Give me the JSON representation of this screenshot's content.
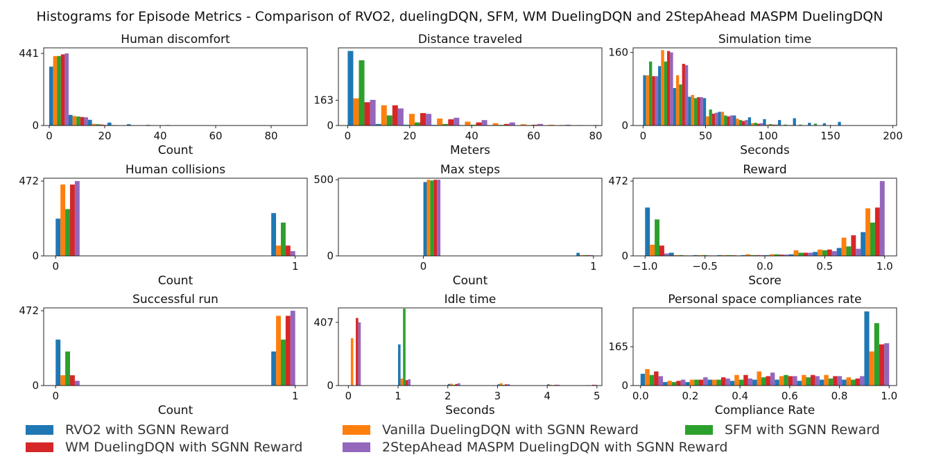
{
  "figure": {
    "title": "Histograms for Episode Metrics - Comparison of RVO2, duelingDQN, SFM, WM DuelingDQN and 2StepAhead MASPM DuelingDQN"
  },
  "colors": {
    "rvo2": "#1f77b4",
    "vanilla": "#ff7f0e",
    "sfm": "#2ca02c",
    "wm": "#d62728",
    "maspm": "#9467bd"
  },
  "legend": {
    "layout": "bottom, three columns",
    "items": [
      {
        "key": "rvo2",
        "label": "RVO2 with SGNN Reward"
      },
      {
        "key": "wm",
        "label": "WM DuelingDQN with SGNN Reward"
      },
      {
        "key": "vanilla",
        "label": "Vanilla DuelingDQN with SGNN Reward"
      },
      {
        "key": "maspm",
        "label": "2StepAhead MASPM DuelingDQN with SGNN Reward"
      },
      {
        "key": "sfm",
        "label": "SFM with SGNN Reward"
      }
    ]
  },
  "chart_data": [
    {
      "type": "bar",
      "title": "Human discomfort",
      "xlabel": "Count",
      "xlim": [
        -2,
        93
      ],
      "ylim": [
        0,
        475
      ],
      "xticks": [
        {
          "v": 0,
          "l": "0"
        },
        {
          "v": 20,
          "l": "20"
        },
        {
          "v": 40,
          "l": "40"
        },
        {
          "v": 60,
          "l": "60"
        },
        {
          "v": 80,
          "l": "80"
        }
      ],
      "yticks": [
        {
          "v": 0,
          "l": "0"
        },
        {
          "v": 441,
          "l": "441"
        }
      ],
      "bin_edges": [
        0,
        7,
        14,
        21,
        28,
        35,
        42,
        49
      ],
      "series": [
        {
          "key": "rvo2",
          "values": [
            360,
            65,
            35,
            18,
            8,
            4,
            3
          ]
        },
        {
          "key": "vanilla",
          "values": [
            425,
            58,
            10,
            3,
            1,
            1,
            0
          ]
        },
        {
          "key": "sfm",
          "values": [
            425,
            55,
            8,
            2,
            1,
            0,
            0
          ]
        },
        {
          "key": "wm",
          "values": [
            435,
            52,
            6,
            2,
            0,
            0,
            0
          ]
        },
        {
          "key": "maspm",
          "values": [
            441,
            50,
            4,
            1,
            0,
            0,
            0
          ]
        }
      ]
    },
    {
      "type": "bar",
      "title": "Distance traveled",
      "xlabel": "Meters",
      "xlim": [
        -3,
        82
      ],
      "ylim": [
        0,
        500
      ],
      "xticks": [
        {
          "v": 0,
          "l": "0"
        },
        {
          "v": 20,
          "l": "20"
        },
        {
          "v": 40,
          "l": "40"
        },
        {
          "v": 60,
          "l": "60"
        },
        {
          "v": 80,
          "l": "80"
        }
      ],
      "yticks": [
        {
          "v": 0,
          "l": "0"
        },
        {
          "v": 163,
          "l": "163"
        }
      ],
      "bin_edges": [
        0,
        9,
        18,
        27,
        36,
        45,
        54,
        63,
        72,
        81
      ],
      "series": [
        {
          "key": "rvo2",
          "values": [
            480,
            10,
            5,
            4,
            3,
            3,
            2,
            2,
            2
          ]
        },
        {
          "key": "vanilla",
          "values": [
            175,
            130,
            75,
            45,
            25,
            15,
            8,
            5,
            3
          ]
        },
        {
          "key": "sfm",
          "values": [
            420,
            65,
            20,
            10,
            5,
            4,
            3,
            2,
            2
          ]
        },
        {
          "key": "wm",
          "values": [
            150,
            130,
            80,
            40,
            20,
            10,
            5,
            3,
            2
          ]
        },
        {
          "key": "maspm",
          "values": [
            165,
            110,
            75,
            50,
            35,
            20,
            10,
            5,
            3
          ]
        }
      ]
    },
    {
      "type": "bar",
      "title": "Simulation time",
      "xlabel": "Seconds",
      "xlim": [
        -8,
        203
      ],
      "ylim": [
        0,
        170
      ],
      "xticks": [
        {
          "v": 0,
          "l": "0"
        },
        {
          "v": 50,
          "l": "50"
        },
        {
          "v": 100,
          "l": "100"
        },
        {
          "v": 150,
          "l": "150"
        },
        {
          "v": 200,
          "l": "200"
        }
      ],
      "yticks": [
        {
          "v": 0,
          "l": "0"
        },
        {
          "v": 160,
          "l": "160"
        }
      ],
      "bin_edges": [
        0,
        12,
        24,
        36,
        48,
        60,
        72,
        84,
        96,
        108,
        120,
        132,
        144,
        156,
        168,
        180,
        192
      ],
      "series": [
        {
          "key": "rvo2",
          "values": [
            110,
            130,
            82,
            63,
            60,
            30,
            22,
            18,
            14,
            12,
            16,
            6,
            5,
            8,
            0,
            0
          ]
        },
        {
          "key": "vanilla",
          "values": [
            110,
            165,
            110,
            67,
            20,
            30,
            15,
            5,
            2,
            1,
            0,
            0,
            0,
            0,
            0,
            0
          ]
        },
        {
          "key": "sfm",
          "values": [
            140,
            140,
            90,
            60,
            35,
            22,
            12,
            6,
            3,
            2,
            2,
            4,
            1,
            0,
            0,
            0
          ]
        },
        {
          "key": "wm",
          "values": [
            108,
            163,
            135,
            62,
            26,
            20,
            10,
            4,
            2,
            1,
            0,
            0,
            0,
            0,
            0,
            0
          ]
        },
        {
          "key": "maspm",
          "values": [
            108,
            160,
            132,
            62,
            28,
            22,
            12,
            5,
            2,
            1,
            0,
            0,
            0,
            0,
            0,
            0
          ]
        }
      ]
    },
    {
      "type": "bar",
      "title": "Human collisions",
      "xlabel": "Count",
      "xlim": [
        -0.05,
        1.05
      ],
      "ylim": [
        0,
        490
      ],
      "xticks": [
        {
          "v": 0,
          "l": "0"
        },
        {
          "v": 1,
          "l": "1"
        }
      ],
      "yticks": [
        {
          "v": 0,
          "l": "0"
        },
        {
          "v": 472,
          "l": "472"
        }
      ],
      "bin_edges": [
        0,
        0.1,
        0.9,
        1.0
      ],
      "series": [
        {
          "key": "rvo2",
          "values": [
            235,
            0,
            270
          ]
        },
        {
          "key": "vanilla",
          "values": [
            450,
            0,
            65
          ]
        },
        {
          "key": "sfm",
          "values": [
            295,
            0,
            210
          ]
        },
        {
          "key": "wm",
          "values": [
            450,
            0,
            65
          ]
        },
        {
          "key": "maspm",
          "values": [
            472,
            0,
            30
          ]
        }
      ]
    },
    {
      "type": "bar",
      "title": "Max steps",
      "xlabel": "Count",
      "xlim": [
        -0.5,
        1.05
      ],
      "ylim": [
        0,
        510
      ],
      "xticks": [
        {
          "v": 0,
          "l": "0"
        },
        {
          "v": 1,
          "l": "1"
        }
      ],
      "yticks": [
        {
          "v": 0,
          "l": "0"
        },
        {
          "v": 500,
          "l": "500"
        }
      ],
      "bin_edges": [
        0,
        0.1,
        0.9,
        1.0
      ],
      "series": [
        {
          "key": "rvo2",
          "values": [
            485,
            0,
            20
          ]
        },
        {
          "key": "vanilla",
          "values": [
            500,
            0,
            5
          ]
        },
        {
          "key": "sfm",
          "values": [
            495,
            0,
            5
          ]
        },
        {
          "key": "wm",
          "values": [
            500,
            0,
            5
          ]
        },
        {
          "key": "maspm",
          "values": [
            500,
            0,
            5
          ]
        }
      ]
    },
    {
      "type": "bar",
      "title": "Reward",
      "xlabel": "Score",
      "xlim": [
        -1.1,
        1.1
      ],
      "ylim": [
        0,
        490
      ],
      "xticks": [
        {
          "v": -1.0,
          "l": "−1.0"
        },
        {
          "v": -0.5,
          "l": "−0.5"
        },
        {
          "v": 0.0,
          "l": "0.0"
        },
        {
          "v": 0.5,
          "l": "0.5"
        },
        {
          "v": 1.0,
          "l": "1.0"
        }
      ],
      "yticks": [
        {
          "v": 0,
          "l": "0"
        },
        {
          "v": 472,
          "l": "472"
        }
      ],
      "bin_edges": [
        -1.0,
        -0.8,
        -0.6,
        -0.4,
        -0.2,
        0.0,
        0.2,
        0.4,
        0.6,
        0.8,
        1.0
      ],
      "series": [
        {
          "key": "rvo2",
          "values": [
            305,
            20,
            5,
            5,
            5,
            5,
            10,
            25,
            50,
            150
          ]
        },
        {
          "key": "vanilla",
          "values": [
            70,
            5,
            5,
            5,
            10,
            10,
            35,
            40,
            115,
            300
          ]
        },
        {
          "key": "sfm",
          "values": [
            230,
            5,
            5,
            5,
            5,
            10,
            20,
            35,
            60,
            210
          ]
        },
        {
          "key": "wm",
          "values": [
            65,
            3,
            3,
            4,
            5,
            8,
            20,
            40,
            130,
            305
          ]
        },
        {
          "key": "maspm",
          "values": [
            15,
            3,
            3,
            3,
            5,
            8,
            20,
            30,
            45,
            472
          ]
        }
      ]
    },
    {
      "type": "bar",
      "title": "Successful run",
      "xlabel": "Count",
      "xlim": [
        -0.05,
        1.05
      ],
      "ylim": [
        0,
        490
      ],
      "xticks": [
        {
          "v": 0,
          "l": "0"
        },
        {
          "v": 1,
          "l": "1"
        }
      ],
      "yticks": [
        {
          "v": 0,
          "l": "0"
        },
        {
          "v": 472,
          "l": "472"
        }
      ],
      "bin_edges": [
        0,
        0.1,
        0.9,
        1.0
      ],
      "series": [
        {
          "key": "rvo2",
          "values": [
            290,
            0,
            215
          ]
        },
        {
          "key": "vanilla",
          "values": [
            65,
            0,
            440
          ]
        },
        {
          "key": "sfm",
          "values": [
            215,
            0,
            290
          ]
        },
        {
          "key": "wm",
          "values": [
            65,
            0,
            440
          ]
        },
        {
          "key": "maspm",
          "values": [
            30,
            0,
            472
          ]
        }
      ]
    },
    {
      "type": "bar",
      "title": "Idle time",
      "xlabel": "Seconds",
      "xlim": [
        -0.2,
        5.1
      ],
      "ylim": [
        0,
        500
      ],
      "xticks": [
        {
          "v": 0,
          "l": "0"
        },
        {
          "v": 1,
          "l": "1"
        },
        {
          "v": 2,
          "l": "2"
        },
        {
          "v": 3,
          "l": "3"
        },
        {
          "v": 4,
          "l": "4"
        },
        {
          "v": 5,
          "l": "5"
        }
      ],
      "yticks": [
        {
          "v": 0,
          "l": "0"
        },
        {
          "v": 407,
          "l": "407"
        }
      ],
      "bin_edges": [
        0,
        0.25,
        0.5,
        0.75,
        1.0,
        1.25,
        1.5,
        1.75,
        2.0,
        2.25,
        2.5,
        2.75,
        3.0,
        3.25,
        3.5,
        3.75,
        4.0,
        4.25,
        4.5,
        4.75,
        5.0
      ],
      "series": [
        {
          "key": "rvo2",
          "values": [
            0,
            0,
            0,
            0,
            265,
            0,
            0,
            0,
            10,
            0,
            0,
            0,
            8,
            0,
            0,
            0,
            8,
            0,
            0,
            0
          ]
        },
        {
          "key": "vanilla",
          "values": [
            305,
            0,
            0,
            0,
            45,
            0,
            0,
            0,
            12,
            0,
            0,
            0,
            15,
            0,
            0,
            0,
            5,
            0,
            0,
            3
          ]
        },
        {
          "key": "sfm",
          "values": [
            0,
            0,
            0,
            0,
            495,
            0,
            0,
            0,
            5,
            0,
            0,
            0,
            5,
            0,
            0,
            0,
            3,
            0,
            0,
            0
          ]
        },
        {
          "key": "wm",
          "values": [
            435,
            0,
            0,
            0,
            35,
            0,
            0,
            0,
            10,
            0,
            0,
            0,
            8,
            0,
            0,
            0,
            5,
            0,
            0,
            5
          ]
        },
        {
          "key": "maspm",
          "values": [
            407,
            0,
            0,
            0,
            40,
            0,
            0,
            0,
            15,
            0,
            0,
            0,
            8,
            0,
            0,
            0,
            5,
            0,
            0,
            5
          ]
        }
      ]
    },
    {
      "type": "bar",
      "title": "Personal space compliances rate",
      "xlabel": "Compliance Rate",
      "xlim": [
        -0.03,
        1.03
      ],
      "ylim": [
        0,
        330
      ],
      "xticks": [
        {
          "v": 0.0,
          "l": "0.0"
        },
        {
          "v": 0.2,
          "l": "0.2"
        },
        {
          "v": 0.4,
          "l": "0.4"
        },
        {
          "v": 0.6,
          "l": "0.6"
        },
        {
          "v": 0.8,
          "l": "0.8"
        },
        {
          "v": 1.0,
          "l": "1.0"
        }
      ],
      "yticks": [
        {
          "v": 0,
          "l": "0"
        },
        {
          "v": 165,
          "l": "165"
        }
      ],
      "bin_edges": [
        0,
        0.09,
        0.18,
        0.27,
        0.36,
        0.45,
        0.54,
        0.63,
        0.72,
        0.81,
        0.9,
        1.0
      ],
      "series": [
        {
          "key": "rvo2",
          "values": [
            50,
            15,
            15,
            25,
            20,
            25,
            25,
            20,
            25,
            25,
            315
          ]
        },
        {
          "key": "vanilla",
          "values": [
            70,
            20,
            25,
            25,
            45,
            60,
            40,
            45,
            45,
            35,
            145
          ]
        },
        {
          "key": "sfm",
          "values": [
            45,
            15,
            25,
            25,
            25,
            35,
            45,
            35,
            30,
            25,
            265
          ]
        },
        {
          "key": "wm",
          "values": [
            60,
            20,
            25,
            35,
            45,
            40,
            40,
            45,
            40,
            30,
            175
          ]
        },
        {
          "key": "maspm",
          "values": [
            40,
            25,
            35,
            30,
            30,
            55,
            40,
            40,
            40,
            40,
            180
          ]
        }
      ]
    }
  ]
}
